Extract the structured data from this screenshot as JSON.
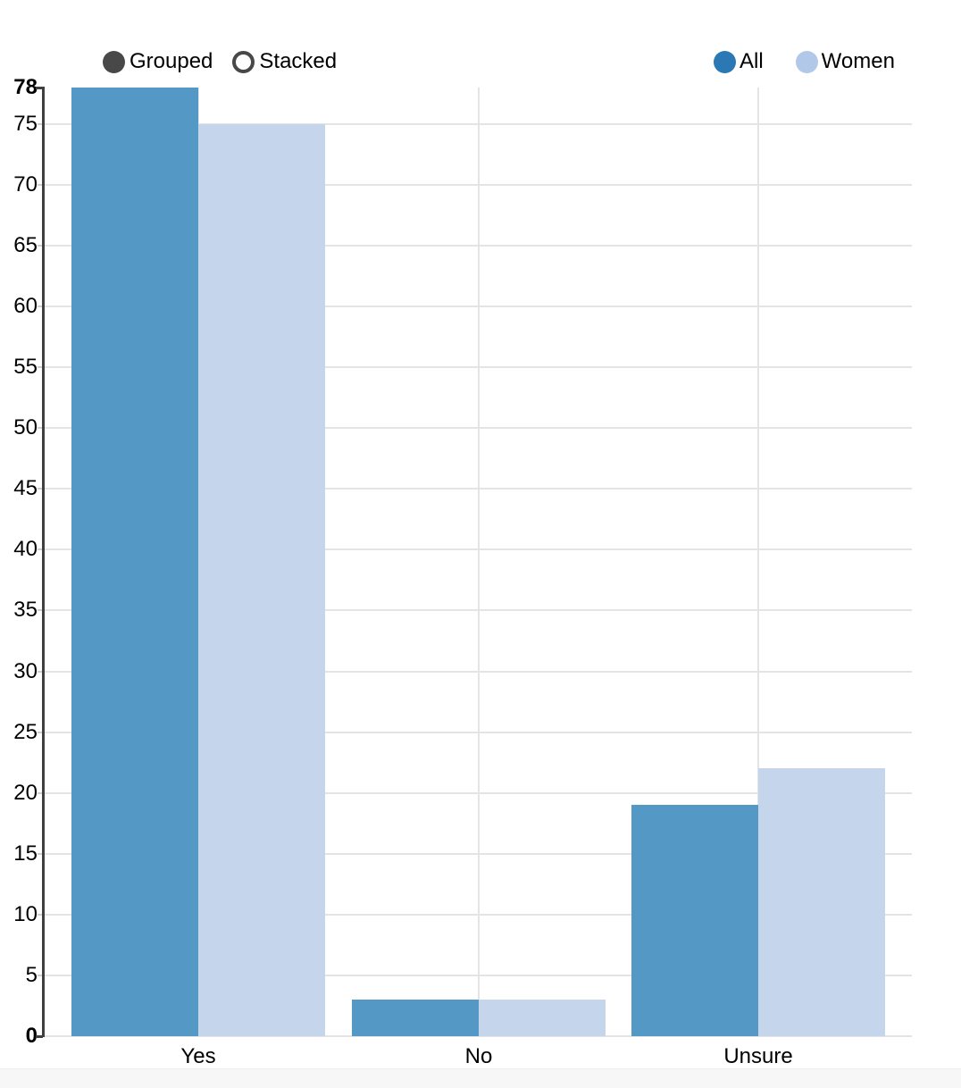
{
  "controls": {
    "options": [
      {
        "label": "Grouped",
        "selected": true
      },
      {
        "label": "Stacked",
        "selected": false
      }
    ]
  },
  "legend": {
    "items": [
      {
        "label": "All",
        "color": "#2A78B4"
      },
      {
        "label": "Women",
        "color": "#B2C8E8"
      }
    ]
  },
  "chart_data": {
    "type": "bar",
    "categories": [
      "Yes",
      "No",
      "Unsure"
    ],
    "series": [
      {
        "name": "All",
        "legend_color": "#2A78B4",
        "bar_color": "#5499C6",
        "values": [
          78,
          3,
          19
        ]
      },
      {
        "name": "Women",
        "legend_color": "#B2C8E8",
        "bar_color": "#C5D5EC",
        "values": [
          75,
          3,
          22
        ]
      }
    ],
    "title": "",
    "xlabel": "",
    "ylabel": "",
    "ylim": [
      0,
      78
    ],
    "yticks": [
      78,
      75,
      70,
      65,
      60,
      55,
      50,
      45,
      40,
      35,
      30,
      25,
      20,
      15,
      10,
      5,
      0
    ],
    "bold_yticks": [
      78,
      0
    ],
    "grid": true,
    "legend_position": "top-right",
    "colors": {
      "grid": "#E4E4E4",
      "minor_tick": "#CFCFCF",
      "axis": "#3F3F3F",
      "text": "#000000",
      "radio": "#484848"
    }
  }
}
